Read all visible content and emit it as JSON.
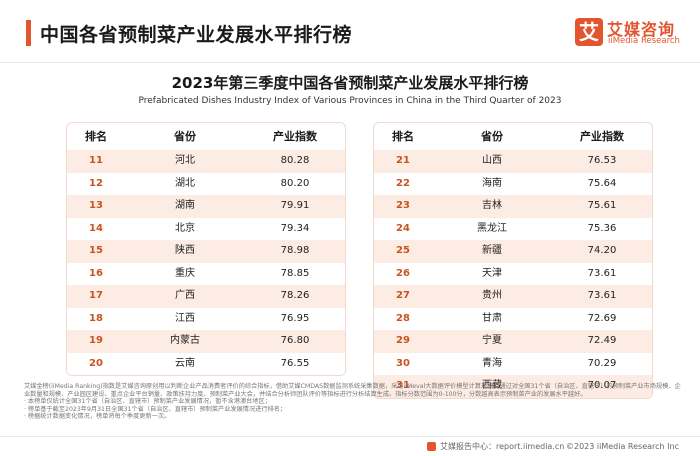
{
  "header": {
    "title": "中国各省预制菜产业发展水平排行榜",
    "logo_mark": "艾",
    "logo_cn": "艾媒咨询",
    "logo_en": "iiMedia Research"
  },
  "main_title": "2023年第三季度中国各省预制菜产业发展水平排行榜",
  "sub_title": "Prefabricated Dishes Industry Index of Various Provinces in China in the Third Quarter of 2023",
  "columns": {
    "rank": "排名",
    "province": "省份",
    "index": "产业指数"
  },
  "left_table": [
    {
      "rank": "11",
      "province": "河北",
      "index": "80.28"
    },
    {
      "rank": "12",
      "province": "湖北",
      "index": "80.20"
    },
    {
      "rank": "13",
      "province": "湖南",
      "index": "79.91"
    },
    {
      "rank": "14",
      "province": "北京",
      "index": "79.34"
    },
    {
      "rank": "15",
      "province": "陕西",
      "index": "78.98"
    },
    {
      "rank": "16",
      "province": "重庆",
      "index": "78.85"
    },
    {
      "rank": "17",
      "province": "广西",
      "index": "78.26"
    },
    {
      "rank": "18",
      "province": "江西",
      "index": "76.95"
    },
    {
      "rank": "19",
      "province": "内蒙古",
      "index": "76.80"
    },
    {
      "rank": "20",
      "province": "云南",
      "index": "76.55"
    }
  ],
  "right_table": [
    {
      "rank": "21",
      "province": "山西",
      "index": "76.53"
    },
    {
      "rank": "22",
      "province": "海南",
      "index": "75.64"
    },
    {
      "rank": "23",
      "province": "吉林",
      "index": "75.61"
    },
    {
      "rank": "24",
      "province": "黑龙江",
      "index": "75.36"
    },
    {
      "rank": "25",
      "province": "新疆",
      "index": "74.20"
    },
    {
      "rank": "26",
      "province": "天津",
      "index": "73.61"
    },
    {
      "rank": "27",
      "province": "贵州",
      "index": "73.61"
    },
    {
      "rank": "28",
      "province": "甘肃",
      "index": "72.69"
    },
    {
      "rank": "29",
      "province": "宁夏",
      "index": "72.49"
    },
    {
      "rank": "30",
      "province": "青海",
      "index": "70.29"
    },
    {
      "rank": "31",
      "province": "西藏",
      "index": "70.07"
    }
  ],
  "footnotes": [
    "艾媒金榜(iiMedia Ranking)指数是艾媒咨询原创用以判断企业产品消费者评价的综合指标，借助艾媒CMDAS数据监测系统采集数据，采用iiMeval大数据评价模型计算规模，通过对全国31个省（自治区、直辖市）的预制菜产业市场规模、企业数量和规模、产业园区建设、重点企业平台销量、政策扶持力度、预制菜产业大会，并结合分析师团队评价等指标进行分析结算生成。指标分数范围为0-100分，分数越高表示预制菜产业的发展水平越好。",
    "· 本榜单仅统计全国31个省（自治区、直辖市）预制菜产业发展情况，暂不含港澳台地区；",
    "· 榜单基于截至2023年9月31日全国31个省（自治区、直辖市）预制菜产业发展情况进行排名；",
    "· 榜据统计数据变化情况，榜单将每个季度更新一次。"
  ],
  "footer": {
    "source": "艾媒报告中心：report.iimedia.cn",
    "copyright": "©2023  iiMedia Research  Inc"
  },
  "colors": {
    "accent": "#e2552f",
    "row_highlight": "#fdece3",
    "rank_text": "#c9541e"
  }
}
